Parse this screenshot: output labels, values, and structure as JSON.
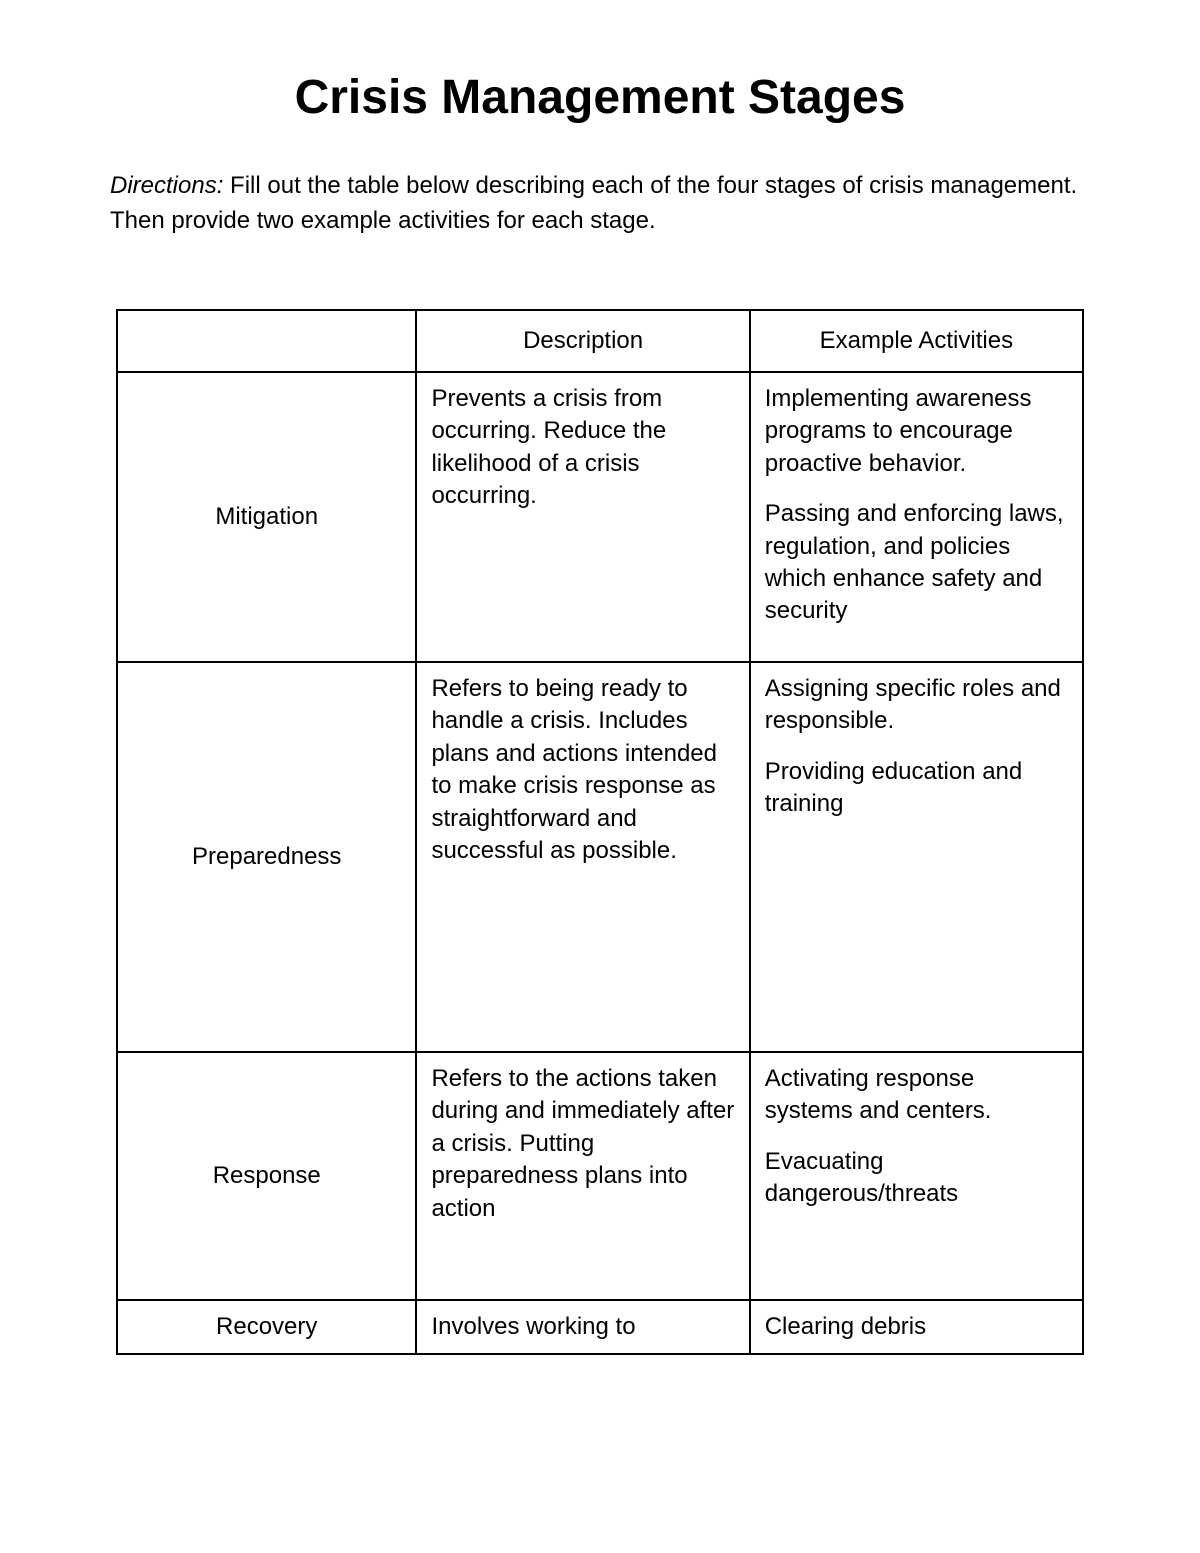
{
  "title": "Crisis Management Stages",
  "directions_label": "Directions:",
  "directions_text": " Fill out the table below describing each of the four stages of crisis management.  Then provide two example activities for each stage.",
  "table": {
    "columns": [
      "",
      "Description",
      "Example Activities"
    ],
    "rows": [
      {
        "stage": "Mitigation",
        "description": [
          "Prevents a  crisis from occurring. Reduce the likelihood of a crisis occurring."
        ],
        "activities": [
          "Implementing awareness programs to encourage proactive behavior.",
          "Passing and enforcing laws, regulation, and policies which enhance safety and security"
        ],
        "row_class": "h-mitigation"
      },
      {
        "stage": "Preparedness",
        "description": [
          "Refers to being ready to handle a crisis. Includes plans and actions intended to make crisis response as straightforward and successful as possible."
        ],
        "activities": [
          "Assigning specific roles and responsible.",
          "Providing education and training"
        ],
        "row_class": "h-preparedness"
      },
      {
        "stage": "Response",
        "description": [
          "Refers to the actions taken during and immediately after a crisis. Putting preparedness plans into action"
        ],
        "activities": [
          "Activating response systems and centers.",
          "Evacuating dangerous/threats"
        ],
        "row_class": "h-response"
      },
      {
        "stage": "Recovery",
        "description": [
          "Involves working to"
        ],
        "activities": [
          "Clearing debris"
        ],
        "row_class": "h-recovery"
      }
    ]
  }
}
